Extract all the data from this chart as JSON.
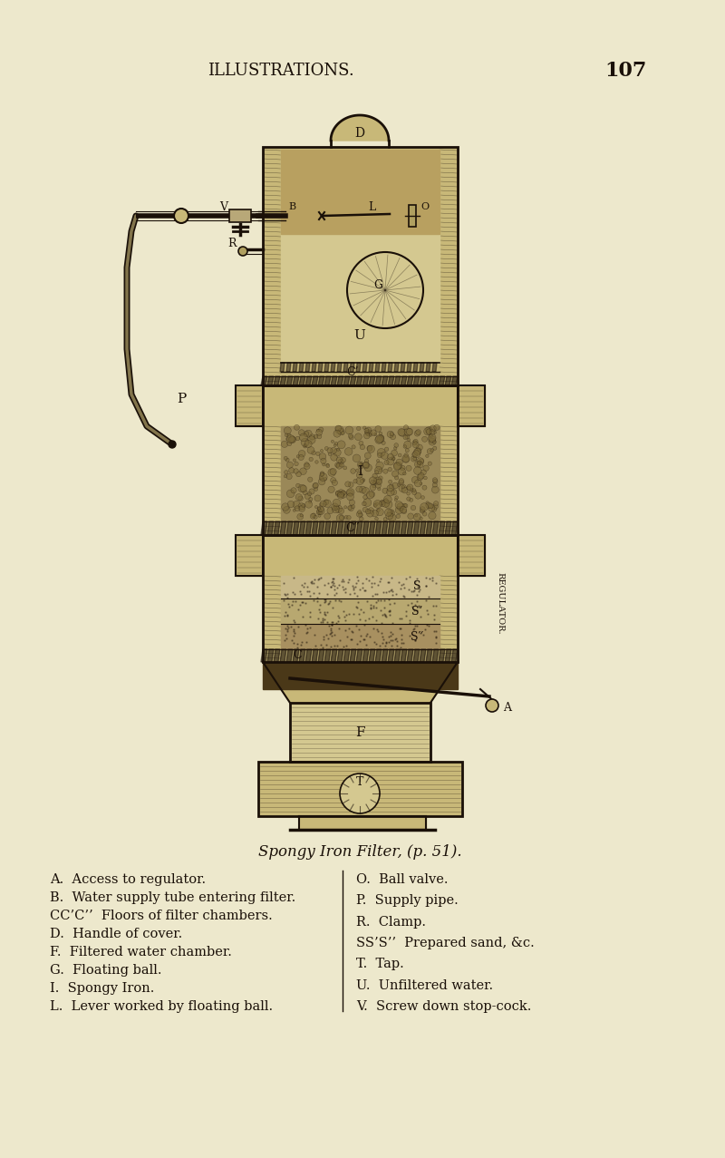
{
  "bg_color": "#ede8cc",
  "title_header": "ILLUSTRATIONS.",
  "page_number": "107",
  "figure_caption": "Spongy Iron Filter, (p. 51).",
  "legend_left": [
    "A.  Access to regulator.",
    "B.  Water supply tube entering filter.",
    "CC’C’’  Floors of filter chambers.",
    "D.  Handle of cover.",
    "F.  Filtered water chamber.",
    "G.  Floating ball.",
    "I.  Spongy Iron.",
    "L.  Lever worked by floating ball."
  ],
  "legend_right": [
    "O.  Ball valve.",
    "P.  Supply pipe.",
    "R.  Clamp.",
    "SS’S’’  Prepared sand, &c.",
    "T.  Tap.",
    "U.  Unfiltered water.",
    "V.  Screw down stop-cock."
  ],
  "ink_color": "#1a1008",
  "hatch_color": "#2a1a08",
  "wall_fill": "#c8b878",
  "inner_fill": "#d4c890",
  "iron_fill": "#9a8858",
  "sand1_fill": "#c8b888",
  "sand2_fill": "#b8a870",
  "sand3_fill": "#a89060",
  "bottom_fill": "#c0aa78"
}
